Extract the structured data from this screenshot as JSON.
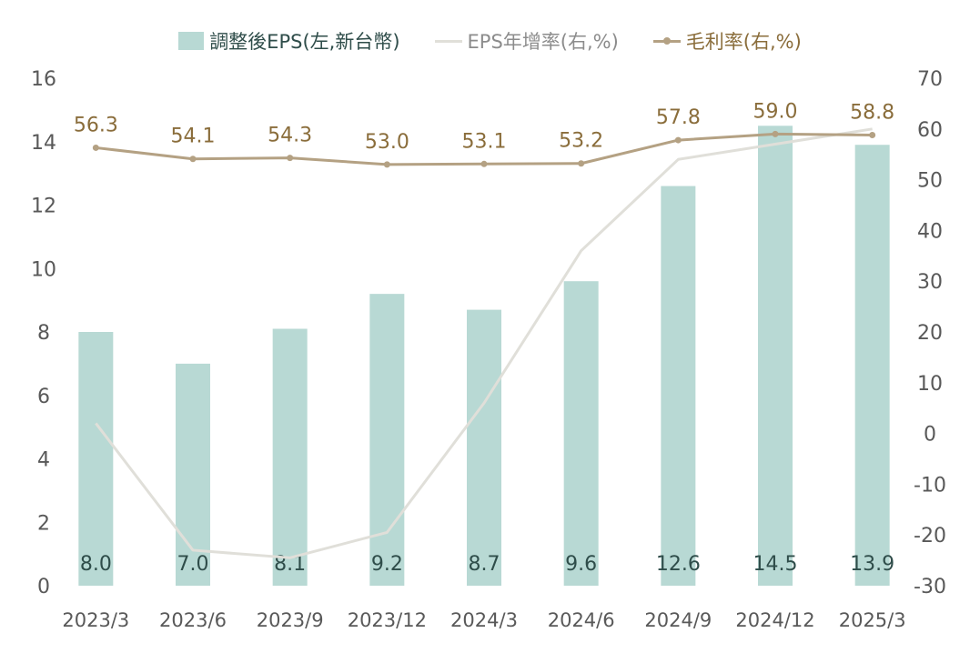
{
  "chart_data": {
    "type": "bar",
    "categories": [
      "2023/3",
      "2023/6",
      "2023/9",
      "2023/12",
      "2024/3",
      "2024/6",
      "2024/9",
      "2024/12",
      "2025/3"
    ],
    "series": [
      {
        "name": "調整後EPS(左,新台幣)",
        "type": "bar",
        "axis": "left",
        "color": "#b8d9d4",
        "label_color": "#2f4d4a",
        "values": [
          8.0,
          7.0,
          8.1,
          9.2,
          8.7,
          9.6,
          12.6,
          14.5,
          13.9
        ],
        "labels": [
          "8.0",
          "7.0",
          "8.1",
          "9.2",
          "8.7",
          "9.6",
          "12.6",
          "14.5",
          "13.9"
        ]
      },
      {
        "name": "EPS年增率(右,%)",
        "type": "line",
        "axis": "right",
        "color": "#e0dfd9",
        "values": [
          2,
          -23,
          -24.5,
          -19.5,
          6,
          36,
          54,
          57,
          60
        ]
      },
      {
        "name": "毛利率(右,%)",
        "type": "line",
        "axis": "right",
        "color": "#b4a183",
        "label_color": "#8a6d3b",
        "values": [
          56.3,
          54.1,
          54.3,
          53.0,
          53.1,
          53.2,
          57.8,
          59.0,
          58.8
        ],
        "labels": [
          "56.3",
          "54.1",
          "54.3",
          "53.0",
          "53.1",
          "53.2",
          "57.8",
          "59.0",
          "58.8"
        ]
      }
    ],
    "y_left": {
      "min": 0,
      "max": 16,
      "ticks": [
        "0",
        "2",
        "4",
        "6",
        "8",
        "10",
        "12",
        "14",
        "16"
      ]
    },
    "y_right": {
      "min": -30,
      "max": 70,
      "ticks": [
        "-30",
        "-20",
        "-10",
        "0",
        "10",
        "20",
        "30",
        "40",
        "50",
        "60",
        "70"
      ]
    },
    "grid": false,
    "legend_position": "top-center",
    "tick_color": "#595959"
  }
}
